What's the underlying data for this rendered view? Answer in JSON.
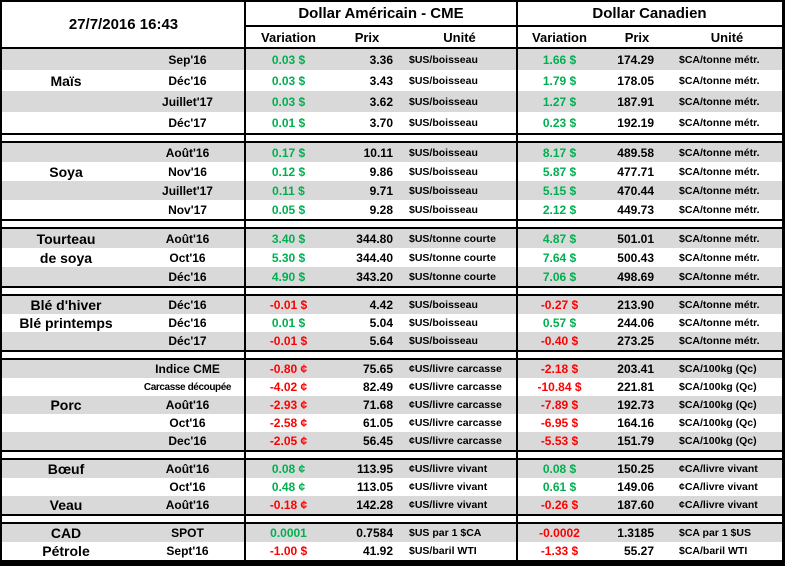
{
  "header": {
    "date": "27/7/2016 16:43",
    "us_title": "Dollar Américain - CME",
    "ca_title": "Dollar Canadien",
    "col_variation": "Variation",
    "col_prix": "Prix",
    "col_unite": "Unité"
  },
  "colors": {
    "positive": "#00B050",
    "negative": "#FF0000",
    "stripe": "#D9D9D9",
    "border": "#000000"
  },
  "sections": [
    {
      "rows": [
        {
          "label": "",
          "contract": "Sep'16",
          "us_var": "0.03 $",
          "us_prix": "3.36",
          "us_unit": "$US/boisseau",
          "ca_var": "1.66 $",
          "ca_prix": "174.29",
          "ca_unit": "$CA/tonne métr."
        },
        {
          "label": "Maïs",
          "contract": "Déc'16",
          "us_var": "0.03 $",
          "us_prix": "3.43",
          "us_unit": "$US/boisseau",
          "ca_var": "1.79 $",
          "ca_prix": "178.05",
          "ca_unit": "$CA/tonne métr."
        },
        {
          "label": "",
          "contract": "Juillet'17",
          "us_var": "0.03 $",
          "us_prix": "3.62",
          "us_unit": "$US/boisseau",
          "ca_var": "1.27 $",
          "ca_prix": "187.91",
          "ca_unit": "$CA/tonne métr."
        },
        {
          "label": "",
          "contract": "Déc'17",
          "us_var": "0.01 $",
          "us_prix": "3.70",
          "us_unit": "$US/boisseau",
          "ca_var": "0.23 $",
          "ca_prix": "192.19",
          "ca_unit": "$CA/tonne métr."
        }
      ]
    },
    {
      "rows": [
        {
          "label": "",
          "contract": "Août'16",
          "us_var": "0.17 $",
          "us_prix": "10.11",
          "us_unit": "$US/boisseau",
          "ca_var": "8.17 $",
          "ca_prix": "489.58",
          "ca_unit": "$CA/tonne métr."
        },
        {
          "label": "Soya",
          "contract": "Nov'16",
          "us_var": "0.12 $",
          "us_prix": "9.86",
          "us_unit": "$US/boisseau",
          "ca_var": "5.87 $",
          "ca_prix": "477.71",
          "ca_unit": "$CA/tonne métr."
        },
        {
          "label": "",
          "contract": "Juillet'17",
          "us_var": "0.11 $",
          "us_prix": "9.71",
          "us_unit": "$US/boisseau",
          "ca_var": "5.15 $",
          "ca_prix": "470.44",
          "ca_unit": "$CA/tonne métr."
        },
        {
          "label": "",
          "contract": "Nov'17",
          "us_var": "0.05 $",
          "us_prix": "9.28",
          "us_unit": "$US/boisseau",
          "ca_var": "2.12 $",
          "ca_prix": "449.73",
          "ca_unit": "$CA/tonne métr."
        }
      ]
    },
    {
      "rows": [
        {
          "label": "Tourteau",
          "contract": "Août'16",
          "us_var": "3.40 $",
          "us_prix": "344.80",
          "us_unit": "$US/tonne courte",
          "ca_var": "4.87 $",
          "ca_prix": "501.01",
          "ca_unit": "$CA/tonne métr."
        },
        {
          "label": "de soya",
          "contract": "Oct'16",
          "us_var": "5.30 $",
          "us_prix": "344.40",
          "us_unit": "$US/tonne courte",
          "ca_var": "7.64 $",
          "ca_prix": "500.43",
          "ca_unit": "$CA/tonne métr."
        },
        {
          "label": "",
          "contract": "Déc'16",
          "us_var": "4.90 $",
          "us_prix": "343.20",
          "us_unit": "$US/tonne courte",
          "ca_var": "7.06 $",
          "ca_prix": "498.69",
          "ca_unit": "$CA/tonne métr."
        }
      ]
    },
    {
      "rows": [
        {
          "label": "Blé d'hiver",
          "contract": "Déc'16",
          "us_var": "-0.01 $",
          "us_prix": "4.42",
          "us_unit": "$US/boisseau",
          "ca_var": "-0.27 $",
          "ca_prix": "213.90",
          "ca_unit": "$CA/tonne métr."
        },
        {
          "label": "Blé printemps",
          "contract": "Déc'16",
          "us_var": "0.01 $",
          "us_prix": "5.04",
          "us_unit": "$US/boisseau",
          "ca_var": "0.57 $",
          "ca_prix": "244.06",
          "ca_unit": "$CA/tonne métr."
        },
        {
          "label": "",
          "contract": "Déc'17",
          "us_var": "-0.01 $",
          "us_prix": "5.64",
          "us_unit": "$US/boisseau",
          "ca_var": "-0.40 $",
          "ca_prix": "273.25",
          "ca_unit": "$CA/tonne métr."
        }
      ]
    },
    {
      "rows": [
        {
          "label": "",
          "contract": "Indice CME",
          "us_var": "-0.80 ¢",
          "us_prix": "75.65",
          "us_unit": "¢US/livre carcasse",
          "ca_var": "-2.18 $",
          "ca_prix": "203.41",
          "ca_unit": "$CA/100kg (Qc)"
        },
        {
          "label": "",
          "contract": "Carcasse découpée",
          "us_var": "-4.02 ¢",
          "us_prix": "82.49",
          "us_unit": "¢US/livre carcasse",
          "ca_var": "-10.84 $",
          "ca_prix": "221.81",
          "ca_unit": "$CA/100kg (Qc)"
        },
        {
          "label": "Porc",
          "contract": "Août'16",
          "us_var": "-2.93 ¢",
          "us_prix": "71.68",
          "us_unit": "¢US/livre carcasse",
          "ca_var": "-7.89 $",
          "ca_prix": "192.73",
          "ca_unit": "$CA/100kg (Qc)"
        },
        {
          "label": "",
          "contract": "Oct'16",
          "us_var": "-2.58 ¢",
          "us_prix": "61.05",
          "us_unit": "¢US/livre carcasse",
          "ca_var": "-6.95 $",
          "ca_prix": "164.16",
          "ca_unit": "$CA/100kg (Qc)"
        },
        {
          "label": "",
          "contract": "Dec'16",
          "us_var": "-2.05 ¢",
          "us_prix": "56.45",
          "us_unit": "¢US/livre carcasse",
          "ca_var": "-5.53 $",
          "ca_prix": "151.79",
          "ca_unit": "$CA/100kg (Qc)"
        }
      ]
    },
    {
      "rows": [
        {
          "label": "Bœuf",
          "contract": "Août'16",
          "us_var": "0.08 ¢",
          "us_prix": "113.95",
          "us_unit": "¢US/livre vivant",
          "ca_var": "0.08 $",
          "ca_prix": "150.25",
          "ca_unit": "¢CA/livre vivant"
        },
        {
          "label": "",
          "contract": "Oct'16",
          "us_var": "0.48 ¢",
          "us_prix": "113.05",
          "us_unit": "¢US/livre vivant",
          "ca_var": "0.61 $",
          "ca_prix": "149.06",
          "ca_unit": "¢CA/livre vivant"
        },
        {
          "label": "Veau",
          "contract": "Août'16",
          "us_var": "-0.18 ¢",
          "us_prix": "142.28",
          "us_unit": "¢US/livre vivant",
          "ca_var": "-0.26 $",
          "ca_prix": "187.60",
          "ca_unit": "¢CA/livre vivant"
        }
      ]
    },
    {
      "rows": [
        {
          "label": "CAD",
          "contract": "SPOT",
          "us_var": "0.0001",
          "us_prix": "0.7584",
          "us_unit": "$US par 1 $CA",
          "ca_var": "-0.0002",
          "ca_prix": "1.3185",
          "ca_unit": "$CA par 1 $US"
        },
        {
          "label": "Pétrole",
          "contract": "Sept'16",
          "us_var": "-1.00 $",
          "us_prix": "41.92",
          "us_unit": "$US/baril WTI",
          "ca_var": "-1.33 $",
          "ca_prix": "55.27",
          "ca_unit": "$CA/baril WTI"
        }
      ]
    }
  ]
}
